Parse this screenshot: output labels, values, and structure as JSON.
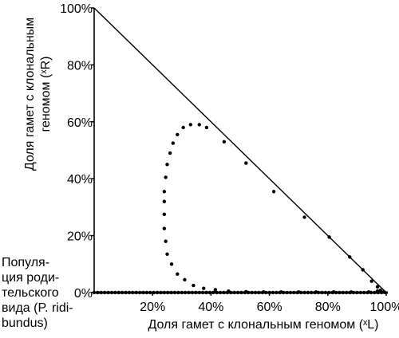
{
  "chart_data": {
    "type": "scatter",
    "xlabel": "Доля гамет с клональным геномом (ˣL)",
    "ylabel_lines": [
      "Доля гамет с клональным",
      "геномом (ˣR)"
    ],
    "x_ticks": [
      "20%",
      "40%",
      "60%",
      "80%",
      "100%"
    ],
    "y_ticks": [
      "0%",
      "20%",
      "40%",
      "60%",
      "80%",
      "100%"
    ],
    "xlim": [
      0,
      100
    ],
    "ylim": [
      0,
      100
    ],
    "origin_annotation": [
      "Популя-",
      "ция роди-",
      "тельского",
      "вида (P. ridi-",
      "bundus)"
    ],
    "boundary_line": {
      "from": [
        0,
        100
      ],
      "to": [
        100,
        0
      ]
    },
    "series": [
      {
        "values": [
          [
            98,
            0.8
          ],
          [
            97,
            2
          ],
          [
            95,
            4
          ],
          [
            92,
            8
          ],
          [
            87.5,
            12.5
          ],
          [
            80.5,
            19.5
          ],
          [
            72,
            26.5
          ],
          [
            61.5,
            35.5
          ],
          [
            52,
            45.5
          ],
          [
            44.5,
            53
          ],
          [
            38.5,
            58
          ],
          [
            36,
            59
          ],
          [
            33,
            59
          ],
          [
            30.5,
            58
          ],
          [
            28.5,
            55.5
          ],
          [
            27,
            52.5
          ],
          [
            26,
            49
          ],
          [
            25,
            45
          ],
          [
            24.5,
            40.5
          ],
          [
            24,
            35.5
          ],
          [
            24,
            32
          ],
          [
            24,
            27.5
          ],
          [
            24,
            22.5
          ],
          [
            24.5,
            18
          ],
          [
            25,
            13.5
          ],
          [
            26.5,
            10
          ],
          [
            28.5,
            6.5
          ],
          [
            31,
            4.5
          ],
          [
            34,
            2.5
          ],
          [
            37.5,
            1.5
          ],
          [
            41.5,
            1
          ],
          [
            46,
            0.5
          ],
          [
            52,
            0.3
          ],
          [
            58,
            0.2
          ],
          [
            64,
            0.2
          ],
          [
            70,
            0.2
          ],
          [
            76,
            0.2
          ],
          [
            82,
            0.2
          ],
          [
            88,
            0.2
          ],
          [
            94,
            0.2
          ],
          [
            97,
            0.5
          ],
          [
            99,
            0.2
          ]
        ]
      }
    ]
  }
}
